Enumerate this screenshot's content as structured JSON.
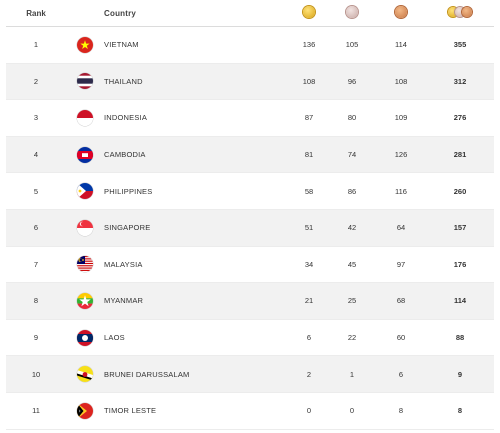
{
  "header": {
    "rank": "Rank",
    "country": "Country",
    "gold_icon": "gold-medal-icon",
    "silver_icon": "silver-medal-icon",
    "bronze_icon": "bronze-medal-icon",
    "total_icon": "total-medals-icon"
  },
  "rows": [
    {
      "rank": "1",
      "country": "VIETNAM",
      "gold": "136",
      "silver": "105",
      "bronze": "114",
      "total": "355"
    },
    {
      "rank": "2",
      "country": "THAILAND",
      "gold": "108",
      "silver": "96",
      "bronze": "108",
      "total": "312"
    },
    {
      "rank": "3",
      "country": "INDONESIA",
      "gold": "87",
      "silver": "80",
      "bronze": "109",
      "total": "276"
    },
    {
      "rank": "4",
      "country": "CAMBODIA",
      "gold": "81",
      "silver": "74",
      "bronze": "126",
      "total": "281"
    },
    {
      "rank": "5",
      "country": "PHILIPPINES",
      "gold": "58",
      "silver": "86",
      "bronze": "116",
      "total": "260"
    },
    {
      "rank": "6",
      "country": "SINGAPORE",
      "gold": "51",
      "silver": "42",
      "bronze": "64",
      "total": "157"
    },
    {
      "rank": "7",
      "country": "MALAYSIA",
      "gold": "34",
      "silver": "45",
      "bronze": "97",
      "total": "176"
    },
    {
      "rank": "8",
      "country": "MYANMAR",
      "gold": "21",
      "silver": "25",
      "bronze": "68",
      "total": "114"
    },
    {
      "rank": "9",
      "country": "LAOS",
      "gold": "6",
      "silver": "22",
      "bronze": "60",
      "total": "88"
    },
    {
      "rank": "10",
      "country": "BRUNEI DARUSSALAM",
      "gold": "2",
      "silver": "1",
      "bronze": "6",
      "total": "9"
    },
    {
      "rank": "11",
      "country": "TIMOR LESTE",
      "gold": "0",
      "silver": "0",
      "bronze": "8",
      "total": "8"
    }
  ],
  "colors": {
    "row_alt": "#f2f2f2",
    "gold": "#d9a515",
    "silver": "#c8a9a4",
    "bronze": "#c97845"
  }
}
